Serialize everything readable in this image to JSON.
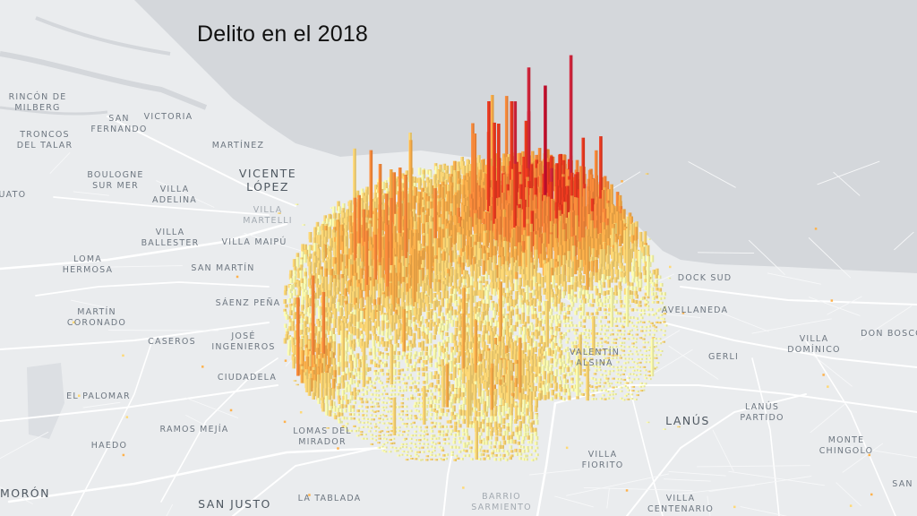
{
  "title": "Delito en el 2018",
  "colors": {
    "water": "#d4d7db",
    "land": "#eaecee",
    "road": "#ffffff",
    "ramp": [
      "#ffffb2",
      "#fed976",
      "#feb24c",
      "#fd8d3c",
      "#f03b20",
      "#d7263d",
      "#c8102e"
    ]
  },
  "places": [
    {
      "id": "rincon-de-milberg",
      "text": "RINCÓN DE\nMILBERG",
      "style": "small"
    },
    {
      "id": "san-fernando",
      "text": "SAN\nFERNANDO",
      "style": "small"
    },
    {
      "id": "victoria",
      "text": "VICTORIA",
      "style": "small"
    },
    {
      "id": "troncos-del-talar",
      "text": "TRONCOS\nDEL TALAR",
      "style": "small"
    },
    {
      "id": "martinez",
      "text": "MARTÍNEZ",
      "style": "small"
    },
    {
      "id": "vicente-lopez",
      "text": "VICENTE\nLÓPEZ",
      "style": "big"
    },
    {
      "id": "boulogne-sur-mer",
      "text": "BOULOGNE\nSUR MER",
      "style": "small"
    },
    {
      "id": "cuato",
      "text": "CUATO",
      "style": "small"
    },
    {
      "id": "villa-adelina",
      "text": "VILLA\nADELINA",
      "style": "small"
    },
    {
      "id": "villa-martelli",
      "text": "VILLA\nMARTELLI",
      "style": "faint"
    },
    {
      "id": "villa-ballester",
      "text": "VILLA\nBALLESTER",
      "style": "small"
    },
    {
      "id": "villa-maipu",
      "text": "VILLA MAIPÚ",
      "style": "small"
    },
    {
      "id": "loma-hermosa",
      "text": "LOMA\nHERMOSA",
      "style": "small"
    },
    {
      "id": "san-martin",
      "text": "SAN MARTÍN",
      "style": "small"
    },
    {
      "id": "saenz-pena",
      "text": "SÁENZ PEÑA",
      "style": "small"
    },
    {
      "id": "martin-coronado",
      "text": "MARTÍN\nCORONADO",
      "style": "small"
    },
    {
      "id": "caseros",
      "text": "CASEROS",
      "style": "small"
    },
    {
      "id": "jose-ingenieros",
      "text": "JOSÉ\nINGENIEROS",
      "style": "small"
    },
    {
      "id": "ciudadela",
      "text": "CIUDADELA",
      "style": "small"
    },
    {
      "id": "el-palomar",
      "text": "EL PALOMAR",
      "style": "small"
    },
    {
      "id": "ramos-mejia",
      "text": "RAMOS MEJÍA",
      "style": "small"
    },
    {
      "id": "haedo",
      "text": "HAEDO",
      "style": "small"
    },
    {
      "id": "lomas-del-mirador",
      "text": "LOMAS DEL\nMIRADOR",
      "style": "small"
    },
    {
      "id": "moron",
      "text": "MORÓN",
      "style": "big"
    },
    {
      "id": "san-justo",
      "text": "SAN JUSTO",
      "style": "big"
    },
    {
      "id": "la-tablada",
      "text": "LA TABLADA",
      "style": "small"
    },
    {
      "id": "barrio-sarmiento",
      "text": "BARRIO\nSARMIENTO",
      "style": "faint"
    },
    {
      "id": "villa-fiorito",
      "text": "VILLA\nFIORITO",
      "style": "small"
    },
    {
      "id": "villa-centenario",
      "text": "VILLA\nCENTENARIO",
      "style": "small"
    },
    {
      "id": "lanus",
      "text": "LANÚS",
      "style": "big"
    },
    {
      "id": "lanus-partido",
      "text": "LANÚS\nPARTIDO",
      "style": "small"
    },
    {
      "id": "monte-chingolo",
      "text": "MONTE\nCHINGOLO",
      "style": "small"
    },
    {
      "id": "gerli",
      "text": "GERLI",
      "style": "small"
    },
    {
      "id": "villa-dominico",
      "text": "VILLA\nDOMÍNICO",
      "style": "small"
    },
    {
      "id": "don-bosco",
      "text": "DON BOSCO",
      "style": "small"
    },
    {
      "id": "avellaneda",
      "text": "AVELLANEDA",
      "style": "small"
    },
    {
      "id": "dock-sud",
      "text": "DOCK SUD",
      "style": "small"
    },
    {
      "id": "valentin-alsina",
      "text": "VALENTÍN\nALSINA",
      "style": "small"
    },
    {
      "id": "san-partial",
      "text": "SAN",
      "style": "small"
    }
  ]
}
